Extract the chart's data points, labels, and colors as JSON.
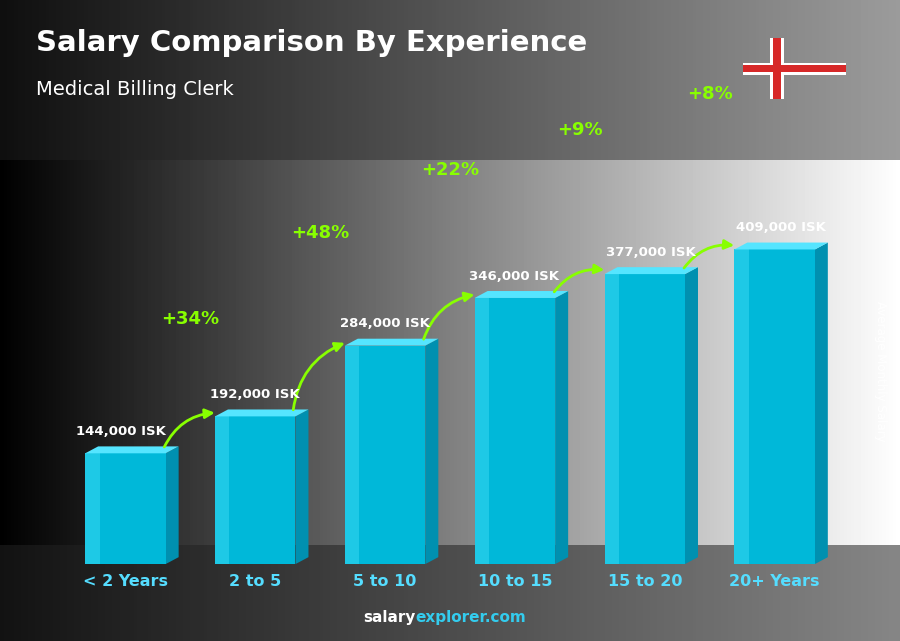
{
  "title": "Salary Comparison By Experience",
  "subtitle": "Medical Billing Clerk",
  "categories": [
    "< 2 Years",
    "2 to 5",
    "5 to 10",
    "10 to 15",
    "15 to 20",
    "20+ Years"
  ],
  "values": [
    144000,
    192000,
    284000,
    346000,
    377000,
    409000
  ],
  "labels": [
    "144,000 ISK",
    "192,000 ISK",
    "284,000 ISK",
    "346,000 ISK",
    "377,000 ISK",
    "409,000 ISK"
  ],
  "pct_changes": [
    "+34%",
    "+48%",
    "+22%",
    "+9%",
    "+8%"
  ],
  "bar_color_front": "#00b8d9",
  "bar_color_light": "#33d6f0",
  "bar_color_dark": "#0090b0",
  "bar_color_top": "#55e5ff",
  "bg_color": "#555555",
  "title_color": "#ffffff",
  "subtitle_color": "#ffffff",
  "label_color": "#ffffff",
  "pct_color": "#88ff00",
  "arrow_color": "#88ff00",
  "footer_salary_color": "#ffffff",
  "footer_explorer_color": "#33ccee",
  "ylabel": "Average Monthly Salary",
  "ylim": [
    0,
    500000
  ],
  "bar_width": 0.62,
  "bar_gap": 0.05
}
